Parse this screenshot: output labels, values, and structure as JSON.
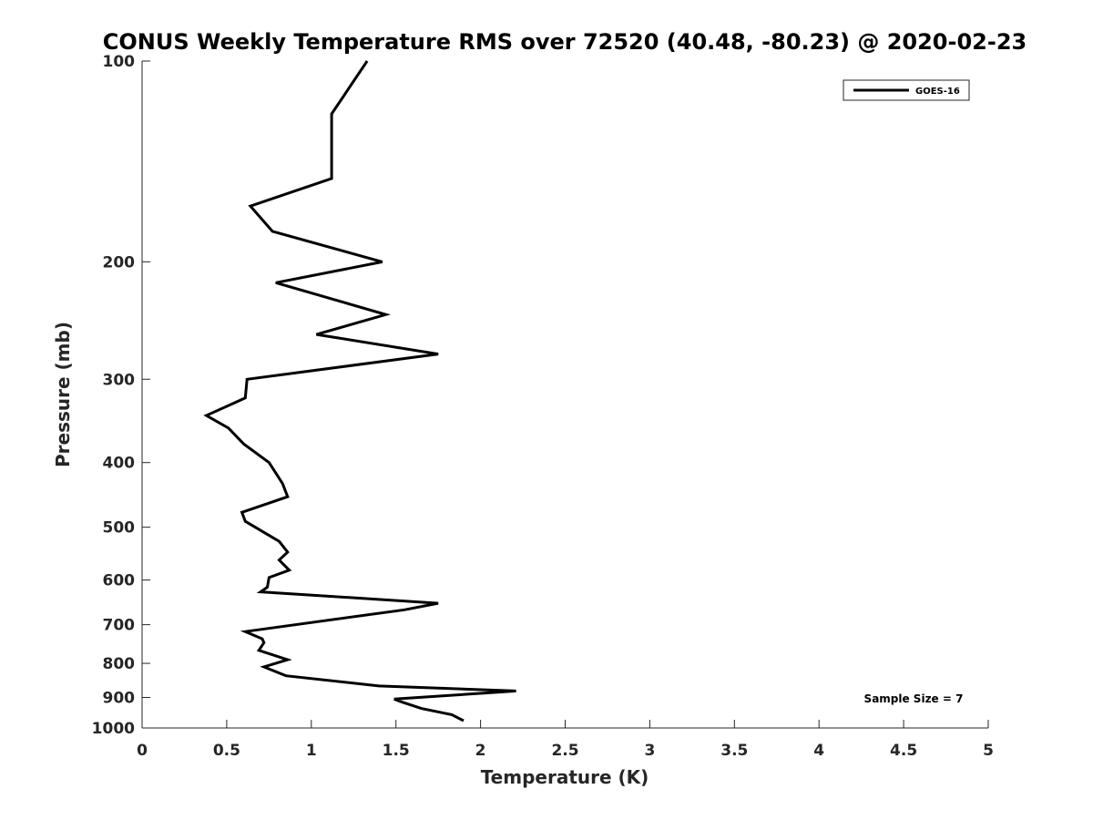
{
  "chart_data": {
    "type": "line",
    "title": "CONUS Weekly Temperature RMS over 72520 (40.48, -80.23) @ 2020-02-23",
    "xlabel": "Temperature (K)",
    "ylabel": "Pressure (mb)",
    "xlim": [
      0,
      5
    ],
    "ylim": [
      100,
      1000
    ],
    "y_scale": "log",
    "y_reversed": true,
    "x_ticks": [
      "0",
      "0.5",
      "1",
      "1.5",
      "2",
      "2.5",
      "3",
      "3.5",
      "4",
      "4.5",
      "5"
    ],
    "y_ticks": [
      "100",
      "200",
      "300",
      "400",
      "500",
      "600",
      "700",
      "800",
      "900",
      "1000"
    ],
    "grid": false,
    "legend_position": "top-right",
    "annotation": "Sample Size = 7",
    "series": [
      {
        "name": "GOES-16",
        "color": "#000000",
        "x": [
          1.33,
          1.12,
          1.12,
          0.64,
          0.77,
          1.42,
          0.79,
          1.44,
          1.03,
          1.75,
          0.62,
          0.61,
          0.38,
          0.51,
          0.6,
          0.75,
          0.83,
          0.86,
          0.59,
          0.61,
          0.81,
          0.86,
          0.81,
          0.87,
          0.75,
          0.74,
          0.7,
          1.75,
          1.55,
          0.61,
          0.71,
          0.72,
          0.69,
          0.86,
          0.72,
          0.85,
          1.4,
          2.21,
          1.49,
          1.54,
          1.65,
          1.83,
          1.9
        ],
        "y": [
          100,
          120,
          150,
          165,
          180,
          200,
          215,
          240,
          257,
          275,
          300,
          320,
          340,
          355,
          375,
          400,
          430,
          450,
          475,
          490,
          525,
          545,
          560,
          580,
          595,
          615,
          625,
          650,
          665,
          717,
          735,
          745,
          765,
          790,
          810,
          835,
          865,
          880,
          905,
          915,
          935,
          955,
          975
        ]
      }
    ]
  }
}
